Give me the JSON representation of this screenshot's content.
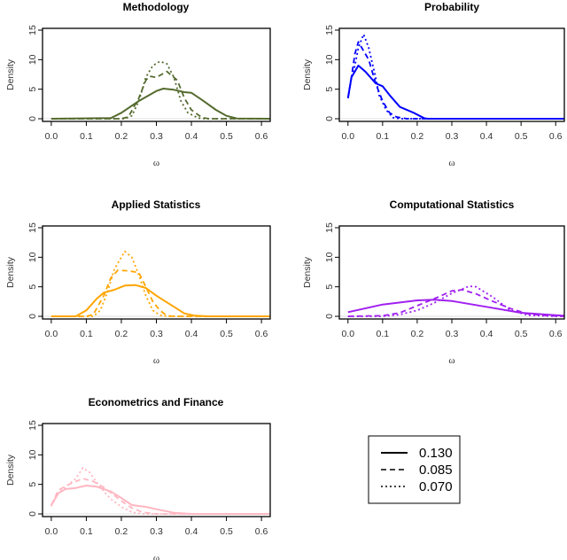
{
  "chart_data": {
    "type": "line",
    "panels": [
      {
        "title": "Methodology",
        "color": "#556b2f",
        "xlabel": "ω",
        "ylabel": "Density",
        "xlim": [
          -0.025,
          0.625
        ],
        "ylim": [
          -0.45,
          15.3
        ],
        "xticks": [
          "0.0",
          "0.1",
          "0.2",
          "0.3",
          "0.4",
          "0.5",
          "0.6"
        ],
        "yticks": [
          "0",
          "5",
          "10",
          "15"
        ],
        "series": [
          {
            "name": "0.130",
            "style": "solid",
            "x": [
              0,
              0.17,
              0.2,
              0.25,
              0.3,
              0.32,
              0.35,
              0.38,
              0.4,
              0.43,
              0.47,
              0.5,
              0.53,
              0.625
            ],
            "y": [
              0,
              0.1,
              1,
              3,
              4.7,
              5.1,
              4.9,
              4.5,
              4.4,
              3.2,
              1.5,
              0.5,
              0.05,
              0
            ]
          },
          {
            "name": "0.085",
            "style": "dashed",
            "x": [
              0,
              0.2,
              0.22,
              0.25,
              0.27,
              0.28,
              0.3,
              0.33,
              0.36,
              0.38,
              0.4,
              0.43,
              0.45,
              0.625
            ],
            "y": [
              0,
              0,
              0.3,
              3.5,
              6.5,
              7.2,
              7,
              8,
              6.5,
              3.5,
              1.5,
              0.2,
              0,
              0
            ]
          },
          {
            "name": "0.070",
            "style": "dotted",
            "x": [
              0,
              0.21,
              0.23,
              0.25,
              0.27,
              0.29,
              0.31,
              0.33,
              0.35,
              0.37,
              0.39,
              0.42,
              0.44,
              0.625
            ],
            "y": [
              0,
              0,
              0.5,
              3,
              7,
              9,
              9.7,
              9.3,
              7,
              3,
              1,
              0.1,
              0,
              0
            ]
          }
        ]
      },
      {
        "title": "Probability",
        "color": "#0000ff",
        "xlabel": "ω",
        "ylabel": "Density",
        "xlim": [
          -0.025,
          0.625
        ],
        "ylim": [
          -0.45,
          15.3
        ],
        "xticks": [
          "0.0",
          "0.1",
          "0.2",
          "0.3",
          "0.4",
          "0.5",
          "0.6"
        ],
        "yticks": [
          "0",
          "5",
          "10",
          "15"
        ],
        "series": [
          {
            "name": "0.130",
            "style": "solid",
            "x": [
              0,
              0.01,
              0.03,
              0.05,
              0.08,
              0.1,
              0.12,
              0.15,
              0.19,
              0.22,
              0.23,
              0.625
            ],
            "y": [
              3.5,
              7,
              9,
              8,
              6,
              5.5,
              4,
              2,
              1,
              0.1,
              0,
              0
            ]
          },
          {
            "name": "0.085",
            "style": "dashed",
            "x": [
              0,
              0.01,
              0.02,
              0.03,
              0.04,
              0.06,
              0.08,
              0.1,
              0.12,
              0.14,
              0.17,
              0.625
            ],
            "y": [
              3.5,
              7,
              11,
              13,
              12,
              10,
              6,
              3,
              1,
              0.3,
              0,
              0
            ]
          },
          {
            "name": "0.070",
            "style": "dotted",
            "x": [
              0,
              0.01,
              0.02,
              0.03,
              0.045,
              0.06,
              0.08,
              0.09,
              0.11,
              0.13,
              0.15,
              0.625
            ],
            "y": [
              3.5,
              7,
              9,
              12,
              14.3,
              12,
              7,
              4,
              1.5,
              0.2,
              0,
              0
            ]
          }
        ]
      },
      {
        "title": "Applied Statistics",
        "color": "#ffa500",
        "xlabel": "ω",
        "ylabel": "Density",
        "xlim": [
          -0.025,
          0.625
        ],
        "ylim": [
          -0.45,
          15.3
        ],
        "xticks": [
          "0.0",
          "0.1",
          "0.2",
          "0.3",
          "0.4",
          "0.5",
          "0.6"
        ],
        "yticks": [
          "0",
          "5",
          "10",
          "15"
        ],
        "series": [
          {
            "name": "0.130",
            "style": "solid",
            "x": [
              0,
              0.07,
              0.1,
              0.13,
              0.15,
              0.18,
              0.21,
              0.24,
              0.27,
              0.3,
              0.34,
              0.38,
              0.41,
              0.45,
              0.625
            ],
            "y": [
              0,
              0,
              1,
              3,
              4,
              4.5,
              5.2,
              5.3,
              4.8,
              3.5,
              2,
              0.5,
              0.1,
              0,
              0
            ]
          },
          {
            "name": "0.085",
            "style": "dashed",
            "x": [
              0,
              0.1,
              0.12,
              0.15,
              0.17,
              0.19,
              0.22,
              0.25,
              0.27,
              0.29,
              0.31,
              0.33,
              0.35,
              0.625
            ],
            "y": [
              0,
              0,
              0.3,
              3.5,
              6.5,
              7.8,
              7.7,
              7.4,
              5,
              2.5,
              1,
              0.1,
              0,
              0
            ]
          },
          {
            "name": "0.070",
            "style": "dotted",
            "x": [
              0,
              0.12,
              0.14,
              0.16,
              0.18,
              0.2,
              0.21,
              0.23,
              0.25,
              0.27,
              0.29,
              0.31,
              0.33,
              0.625
            ],
            "y": [
              0,
              0,
              1,
              4,
              8,
              10,
              11,
              10,
              7,
              3.5,
              1,
              0.2,
              0,
              0
            ]
          }
        ]
      },
      {
        "title": "Computational Statistics",
        "color": "#a020f0",
        "xlabel": "ω",
        "ylabel": "Density",
        "xlim": [
          -0.025,
          0.625
        ],
        "ylim": [
          -0.45,
          15.3
        ],
        "xticks": [
          "0.0",
          "0.1",
          "0.2",
          "0.3",
          "0.4",
          "0.5",
          "0.6"
        ],
        "yticks": [
          "0",
          "5",
          "10",
          "15"
        ],
        "series": [
          {
            "name": "0.130",
            "style": "solid",
            "x": [
              0,
              0.1,
              0.2,
              0.25,
              0.3,
              0.4,
              0.5,
              0.6,
              0.625
            ],
            "y": [
              0.7,
              2,
              2.7,
              2.8,
              2.6,
              1.6,
              0.6,
              0.2,
              0.1
            ]
          },
          {
            "name": "0.085",
            "style": "dashed",
            "x": [
              0,
              0.1,
              0.15,
              0.2,
              0.25,
              0.3,
              0.33,
              0.37,
              0.42,
              0.47,
              0.52,
              0.58,
              0.625
            ],
            "y": [
              0,
              0.1,
              0.6,
              1.8,
              3,
              4.3,
              4.5,
              3.8,
              2.5,
              1.3,
              0.4,
              0.1,
              0
            ]
          },
          {
            "name": "0.070",
            "style": "dotted",
            "x": [
              0,
              0.1,
              0.15,
              0.2,
              0.25,
              0.3,
              0.35,
              0.37,
              0.42,
              0.47,
              0.52,
              0.6,
              0.625
            ],
            "y": [
              0,
              0,
              0.3,
              1,
              2.3,
              3.9,
              5.1,
              5,
              3.2,
              1,
              0.2,
              0,
              0
            ]
          }
        ]
      },
      {
        "title": "Econometrics and Finance",
        "color": "#ffb6c1",
        "xlabel": "ω",
        "ylabel": "Density",
        "xlim": [
          -0.025,
          0.625
        ],
        "ylim": [
          -0.45,
          15.3
        ],
        "xticks": [
          "0.0",
          "0.1",
          "0.2",
          "0.3",
          "0.4",
          "0.5",
          "0.6"
        ],
        "yticks": [
          "0",
          "5",
          "10",
          "15"
        ],
        "series": [
          {
            "name": "0.130",
            "style": "solid",
            "x": [
              0,
              0.02,
              0.04,
              0.07,
              0.1,
              0.13,
              0.17,
              0.2,
              0.23,
              0.27,
              0.3,
              0.35,
              0.4,
              0.625
            ],
            "y": [
              1.5,
              3.5,
              4.2,
              4.4,
              4.8,
              4.6,
              3.8,
              2.7,
              1.5,
              1.2,
              0.8,
              0.2,
              0,
              0
            ]
          },
          {
            "name": "0.085",
            "style": "dashed",
            "x": [
              0,
              0.02,
              0.05,
              0.09,
              0.12,
              0.15,
              0.2,
              0.23,
              0.26,
              0.3,
              0.625
            ],
            "y": [
              1.5,
              4,
              5,
              6,
              5.5,
              4.5,
              2.2,
              1,
              0.3,
              0,
              0
            ]
          },
          {
            "name": "0.070",
            "style": "dotted",
            "x": [
              0,
              0.02,
              0.05,
              0.07,
              0.09,
              0.11,
              0.14,
              0.17,
              0.2,
              0.23,
              0.26,
              0.625
            ],
            "y": [
              1.3,
              3.5,
              5,
              6,
              7.8,
              7,
              4.5,
              2.5,
              1.2,
              0.3,
              0,
              0
            ]
          }
        ]
      }
    ],
    "legend": {
      "placement": "bottom-right",
      "entries": [
        {
          "label": "0.130",
          "style": "solid"
        },
        {
          "label": "0.085",
          "style": "dashed"
        },
        {
          "label": "0.070",
          "style": "dotted"
        }
      ]
    }
  }
}
